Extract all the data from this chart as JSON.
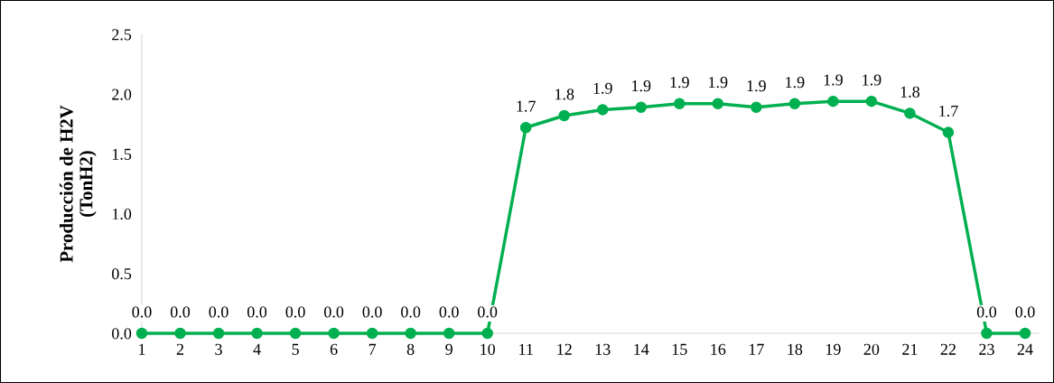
{
  "chart_data": {
    "type": "line",
    "ylabel": "Producción de H2V\n(TonH2)",
    "categories": [
      "1",
      "2",
      "3",
      "4",
      "5",
      "6",
      "7",
      "8",
      "9",
      "10",
      "11",
      "12",
      "13",
      "14",
      "15",
      "16",
      "17",
      "18",
      "19",
      "20",
      "21",
      "22",
      "23",
      "24"
    ],
    "series": [
      {
        "color": "#00b050",
        "values": [
          0,
          0,
          0,
          0,
          0,
          0,
          0,
          0,
          0,
          0,
          1.72,
          1.82,
          1.87,
          1.89,
          1.92,
          1.92,
          1.89,
          1.92,
          1.94,
          1.94,
          1.84,
          1.68,
          0,
          0
        ],
        "value_labels": [
          "0.0",
          "0.0",
          "0.0",
          "0.0",
          "0.0",
          "0.0",
          "0.0",
          "0.0",
          "0.0",
          "0.0",
          "1.7",
          "1.8",
          "1.9",
          "1.9",
          "1.9",
          "1.9",
          "1.9",
          "1.9",
          "1.9",
          "1.9",
          "1.8",
          "1.7",
          "0.0",
          "0.0"
        ]
      }
    ],
    "ylim": [
      0,
      2.5
    ],
    "yticks": [
      {
        "value": 0,
        "label": "0.0"
      },
      {
        "value": 0.5,
        "label": "0.5"
      },
      {
        "value": 1,
        "label": "1.0"
      },
      {
        "value": 1.5,
        "label": "1.5"
      },
      {
        "value": 2,
        "label": "2.0"
      },
      {
        "value": 2.5,
        "label": "2.5"
      }
    ],
    "grid": false,
    "marker": "circle",
    "line_style": "solid"
  }
}
